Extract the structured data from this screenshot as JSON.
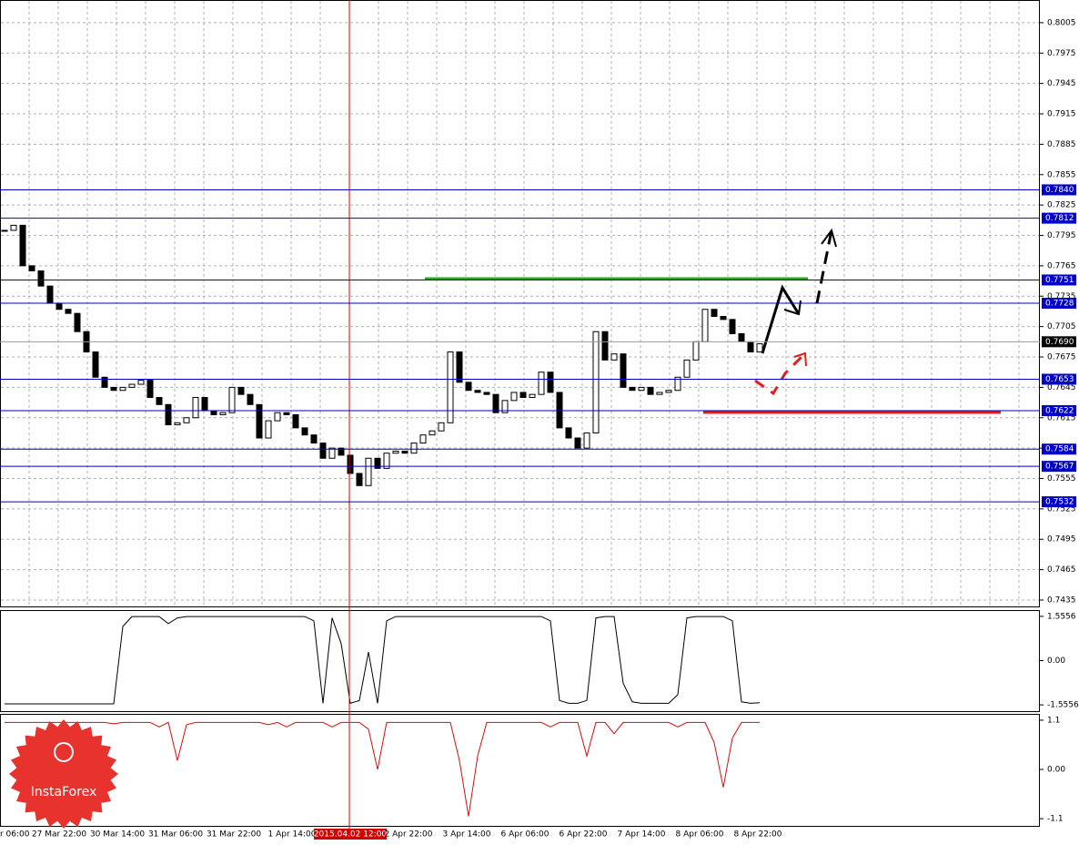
{
  "logo": "InstaForex",
  "chart_data": [
    {
      "type": "candlestick",
      "categories": [
        "r 06:00",
        "27 Mar 22:00",
        "30 Mar 14:00",
        "31 Mar 06:00",
        "31 Mar 22:00",
        "1 Apr 14:00",
        "2015.04.02 12:00",
        "2 Apr 22:00",
        "3 Apr 14:00",
        "6 Apr 06:00",
        "6 Apr 22:00",
        "7 Apr 14:00",
        "8 Apr 06:00",
        "8 Apr 22:00"
      ],
      "close": [
        0.78,
        0.7805,
        0.7765,
        0.776,
        0.7745,
        0.7728,
        0.7722,
        0.7718,
        0.77,
        0.768,
        0.7655,
        0.7645,
        0.7642,
        0.7645,
        0.7648,
        0.7652,
        0.7635,
        0.7628,
        0.7608,
        0.761,
        0.7615,
        0.7635,
        0.7622,
        0.7618,
        0.762,
        0.7645,
        0.7638,
        0.7628,
        0.7595,
        0.7612,
        0.762,
        0.7618,
        0.7605,
        0.7598,
        0.759,
        0.7575,
        0.7585,
        0.7578,
        0.756,
        0.7548,
        0.7575,
        0.7565,
        0.758,
        0.7582,
        0.758,
        0.759,
        0.7598,
        0.7602,
        0.761,
        0.768,
        0.765,
        0.7642,
        0.764,
        0.7638,
        0.762,
        0.7632,
        0.764,
        0.7635,
        0.7638,
        0.766,
        0.764,
        0.7605,
        0.7595,
        0.7585,
        0.76,
        0.77,
        0.7672,
        0.7678,
        0.7645,
        0.7642,
        0.7645,
        0.7638,
        0.764,
        0.7642,
        0.7655,
        0.7672,
        0.769,
        0.7722,
        0.7715,
        0.7712,
        0.7698,
        0.769,
        0.768,
        0.7688
      ],
      "ylim": [
        0.74287,
        0.80265
      ],
      "yticks": [
        0.8005,
        0.7975,
        0.7945,
        0.7915,
        0.7885,
        0.7855,
        0.7825,
        0.7795,
        0.7765,
        0.7735,
        0.7705,
        0.7675,
        0.7645,
        0.7615,
        0.7585,
        0.7555,
        0.7525,
        0.7495,
        0.7465,
        0.7435
      ],
      "levels": [
        {
          "value": 0.784,
          "label": "0.7840"
        },
        {
          "value": 0.7812,
          "label": "0.7812"
        },
        {
          "value": 0.7751,
          "label": "0.7751"
        },
        {
          "value": 0.7728,
          "label": "0.7728"
        },
        {
          "value": 0.7653,
          "label": "0.7653"
        },
        {
          "value": 0.7622,
          "label": "0.7622"
        },
        {
          "value": 0.7584,
          "label": "0.7584"
        },
        {
          "value": 0.7567,
          "label": "0.7567"
        },
        {
          "value": 0.7532,
          "label": "0.7532"
        }
      ],
      "level_color": "#0000c8",
      "current_price": {
        "value": 0.769,
        "label": "0.7690"
      },
      "grid": true
    },
    {
      "type": "line",
      "color": "#000000",
      "values": [
        -1.52,
        -1.52,
        -1.52,
        -1.52,
        -1.52,
        -1.52,
        -1.52,
        -1.52,
        -1.52,
        -1.52,
        -1.52,
        -1.52,
        -1.52,
        1.2,
        1.55,
        1.55,
        1.55,
        1.55,
        1.3,
        1.5,
        1.55,
        1.55,
        1.55,
        1.55,
        1.55,
        1.55,
        1.55,
        1.55,
        1.55,
        1.55,
        1.55,
        1.55,
        1.55,
        1.55,
        1.4,
        -1.5,
        1.5,
        0.6,
        -1.5,
        -1.4,
        0.3,
        -1.5,
        1.4,
        1.55,
        1.55,
        1.55,
        1.55,
        1.55,
        1.55,
        1.55,
        1.55,
        1.55,
        1.55,
        1.55,
        1.55,
        1.55,
        1.55,
        1.55,
        1.55,
        1.55,
        1.4,
        -1.4,
        -1.5,
        -1.5,
        -1.4,
        1.5,
        1.55,
        1.55,
        -0.8,
        -1.45,
        -1.5,
        -1.5,
        -1.5,
        -1.5,
        -1.2,
        1.5,
        1.55,
        1.55,
        1.55,
        1.55,
        1.4,
        -1.45,
        -1.5,
        -1.48
      ],
      "ylim": [
        -1.776,
        1.744
      ],
      "yticks": [
        1.5556,
        {
          "value": 0,
          "label": "0.00"
        },
        -1.5556
      ]
    },
    {
      "type": "line",
      "color": "#d01010",
      "values": [
        1.05,
        1.05,
        1.05,
        1.05,
        1.05,
        1.05,
        1.05,
        1.05,
        1.05,
        1.05,
        1.05,
        1.05,
        1.02,
        1.05,
        1.05,
        1.05,
        1.05,
        0.95,
        1.05,
        0.2,
        1.0,
        1.05,
        1.05,
        1.05,
        1.05,
        1.05,
        1.05,
        1.05,
        1.05,
        1.0,
        1.05,
        0.95,
        1.05,
        1.05,
        1.05,
        1.05,
        0.95,
        1.05,
        1.05,
        1.05,
        0.9,
        0.0,
        1.05,
        1.05,
        1.05,
        1.05,
        1.05,
        1.05,
        1.05,
        1.05,
        0.2,
        -1.05,
        0.3,
        1.05,
        1.05,
        1.05,
        1.05,
        1.05,
        1.05,
        1.05,
        0.95,
        1.05,
        1.05,
        1.05,
        0.3,
        1.05,
        1.05,
        0.8,
        1.05,
        1.05,
        1.05,
        1.05,
        1.05,
        1.05,
        0.95,
        1.05,
        1.05,
        1.05,
        0.6,
        -0.4,
        0.7,
        1.05,
        1.05,
        1.05
      ],
      "ylim": [
        -1.261,
        1.221
      ],
      "yticks": [
        1.1,
        {
          "value": 0,
          "label": "0.00"
        },
        -1.1
      ]
    }
  ]
}
